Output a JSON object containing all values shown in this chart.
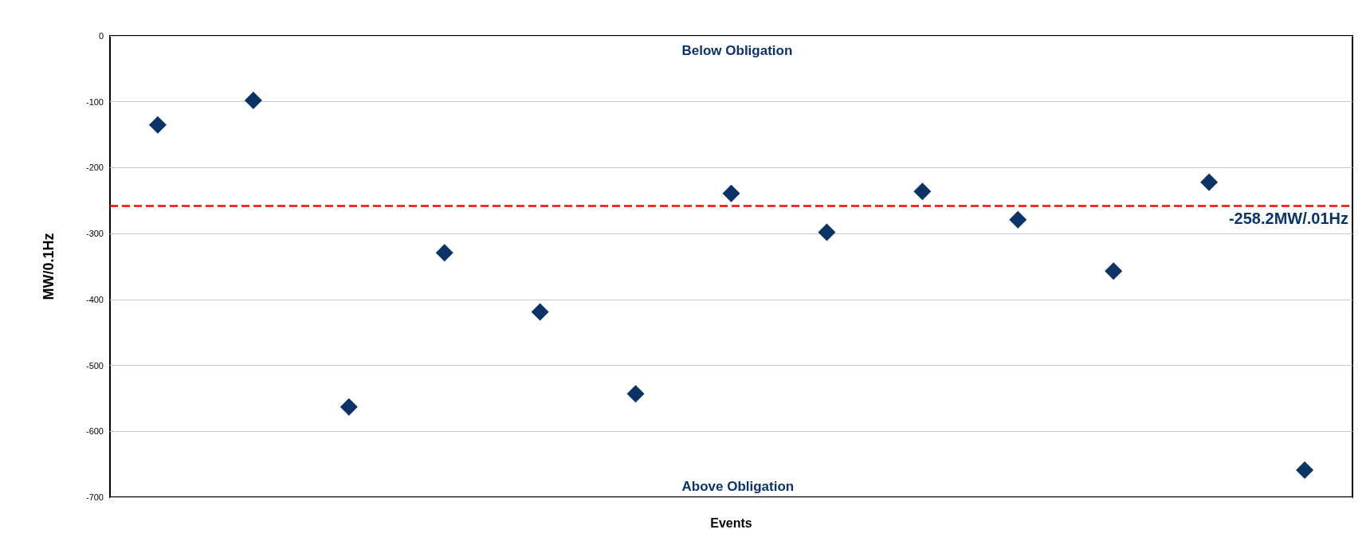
{
  "chart_data": {
    "type": "scatter",
    "xlabel": "Events",
    "ylabel": "MW/0.1Hz",
    "categories": [
      null,
      null,
      null,
      null,
      null,
      null,
      null,
      null,
      null,
      null,
      null,
      null,
      null
    ],
    "series": [
      {
        "color": "#0b3366",
        "values": [
          -135,
          -98,
          -563,
          -329,
          -419,
          -543,
          -239,
          -298,
          -236,
          -279,
          -357,
          -222,
          -659
        ]
      }
    ],
    "ylim": [
      -700,
      0
    ],
    "yticks": [
      0,
      -100,
      -200,
      -300,
      -400,
      -500,
      -600,
      -700
    ],
    "grid": "y",
    "marker": "diamond",
    "ref_lines": [
      {
        "axis": "y",
        "value": -258.2,
        "label": "-258.2MW/.01Hz",
        "color": "#ff0000",
        "line_style": "dashed"
      }
    ],
    "annotations": [
      "Below Obligation",
      "Above Obligation"
    ]
  }
}
